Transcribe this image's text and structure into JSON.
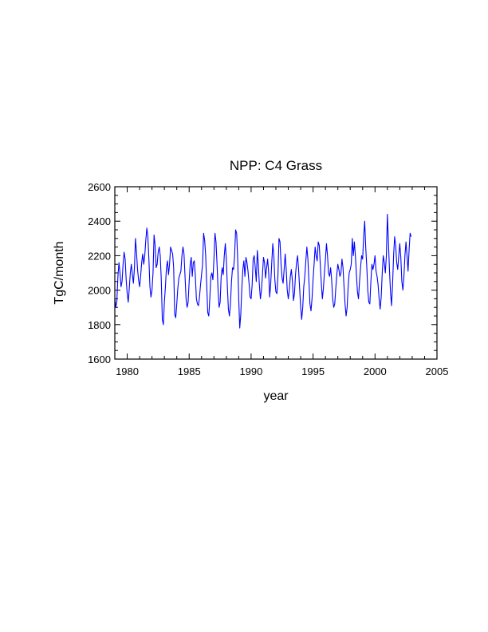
{
  "chart_data": {
    "type": "line",
    "title": "NPP: C4 Grass",
    "xlabel": "year",
    "ylabel": "TgC/month",
    "xlim": [
      1979,
      2005
    ],
    "ylim": [
      1600,
      2600
    ],
    "x_ticks": [
      1980,
      1985,
      1990,
      1995,
      2000,
      2005
    ],
    "y_ticks": [
      1600,
      1800,
      2000,
      2200,
      2400,
      2600
    ],
    "grid": false,
    "legend": "none",
    "line_color": "#0000ff",
    "x_start": 1979.0,
    "x_step": 0.08333,
    "values": [
      1950,
      1900,
      1940,
      2080,
      2160,
      2100,
      2020,
      2050,
      2150,
      2220,
      2180,
      2060,
      1980,
      1930,
      2010,
      2100,
      2150,
      2090,
      2040,
      2130,
      2300,
      2220,
      2120,
      2060,
      2020,
      2080,
      2160,
      2210,
      2150,
      2200,
      2290,
      2360,
      2310,
      2180,
      2020,
      1960,
      2000,
      2100,
      2320,
      2260,
      2130,
      2150,
      2220,
      2250,
      2200,
      2060,
      1830,
      1800,
      1930,
      2020,
      2130,
      2170,
      2090,
      2150,
      2250,
      2230,
      2210,
      2130,
      1860,
      1840,
      1920,
      2010,
      2070,
      2090,
      2110,
      2200,
      2250,
      2210,
      2080,
      1950,
      1900,
      1930,
      2050,
      2150,
      2190,
      2080,
      2160,
      2170,
      2080,
      1950,
      1920,
      1910,
      1960,
      2030,
      2090,
      2150,
      2330,
      2290,
      2200,
      2030,
      1870,
      1850,
      1950,
      2080,
      2100,
      2060,
      2180,
      2330,
      2280,
      2150,
      2000,
      1900,
      1930,
      2080,
      2130,
      2090,
      2200,
      2270,
      2180,
      2020,
      1890,
      1850,
      1920,
      2050,
      2130,
      2120,
      2200,
      2350,
      2330,
      2180,
      1950,
      1780,
      1860,
      2010,
      2120,
      2170,
      2080,
      2190,
      2160,
      2110,
      2040,
      1960,
      1950,
      2030,
      2180,
      2200,
      2130,
      2050,
      2230,
      2150,
      2030,
      1950,
      2000,
      2090,
      2190,
      2160,
      2070,
      2130,
      2180,
      2100,
      1960,
      2040,
      2160,
      2270,
      2200,
      2060,
      1990,
      1980,
      2090,
      2300,
      2280,
      2150,
      2070,
      2040,
      2120,
      2210,
      2120,
      2000,
      1950,
      2000,
      2080,
      2120,
      2050,
      1940,
      1980,
      2090,
      2160,
      2200,
      2120,
      2010,
      1900,
      1830,
      1900,
      2020,
      2080,
      2170,
      2250,
      2180,
      2050,
      1920,
      1880,
      1950,
      2060,
      2150,
      2250,
      2200,
      2170,
      2280,
      2260,
      2150,
      2040,
      1950,
      2010,
      2100,
      2180,
      2270,
      2200,
      2100,
      2080,
      2130,
      2060,
      1950,
      1900,
      1920,
      2010,
      2090,
      2150,
      2120,
      2080,
      2100,
      2180,
      2130,
      2020,
      1920,
      1850,
      1900,
      2020,
      2100,
      2120,
      2150,
      2300,
      2200,
      2280,
      2200,
      2090,
      1990,
      1950,
      2050,
      2130,
      2200,
      2180,
      2310,
      2400,
      2250,
      2140,
      2000,
      1930,
      1920,
      2050,
      2150,
      2120,
      2150,
      2200,
      2110,
      2080,
      2030,
      1950,
      1890,
      1960,
      2100,
      2200,
      2160,
      2100,
      2200,
      2440,
      2280,
      2120,
      1990,
      1910,
      2030,
      2200,
      2310,
      2260,
      2160,
      2120,
      2200,
      2270,
      2190,
      2050,
      2000,
      2080,
      2200,
      2280,
      2200,
      2110,
      2230,
      2330,
      2310
    ]
  }
}
